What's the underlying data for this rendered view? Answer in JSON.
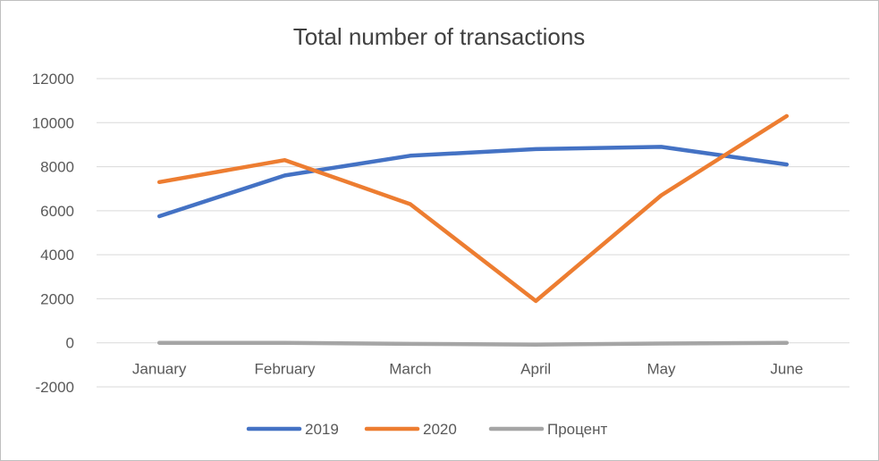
{
  "chart_data": {
    "type": "line",
    "title": "Total number of transactions",
    "xlabel": "",
    "ylabel": "",
    "categories": [
      "January",
      "February",
      "March",
      "April",
      "May",
      "June"
    ],
    "ylim": [
      -2000,
      12000
    ],
    "yticks": [
      "12000",
      "10000",
      "8000",
      "6000",
      "4000",
      "2000",
      "0",
      "-2000"
    ],
    "grid": true,
    "legend_position": "bottom",
    "series": [
      {
        "name": "2019",
        "color": "#4472C4",
        "values": [
          5750,
          7600,
          8500,
          8800,
          8900,
          8100
        ]
      },
      {
        "name": "2020",
        "color": "#ED7D31",
        "values": [
          7300,
          8300,
          6300,
          1900,
          6700,
          10300
        ]
      },
      {
        "name": "Процент",
        "color": "#A5A5A5",
        "values": [
          0,
          0,
          -50,
          -80,
          -30,
          0
        ]
      }
    ]
  }
}
